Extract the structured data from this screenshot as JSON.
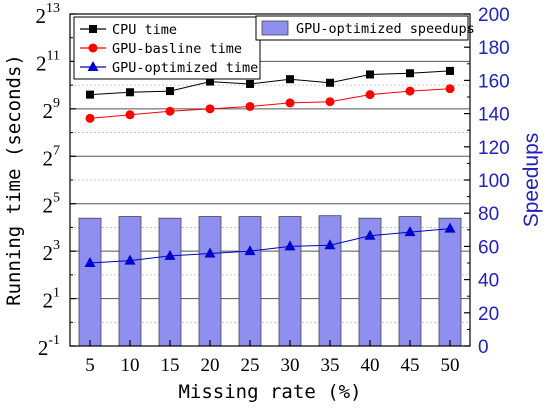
{
  "chart_data": {
    "type": "bar+line",
    "x": {
      "label": "Missing rate (%)",
      "categories": [
        "5",
        "10",
        "15",
        "20",
        "25",
        "30",
        "35",
        "40",
        "45",
        "50"
      ]
    },
    "y_left": {
      "label": "Running time (seconds)",
      "scale": "log2",
      "ticks": [
        {
          "base": "2",
          "exp": "-1",
          "value": -1
        },
        {
          "base": "2",
          "exp": "1",
          "value": 1
        },
        {
          "base": "2",
          "exp": "3",
          "value": 3
        },
        {
          "base": "2",
          "exp": "5",
          "value": 5
        },
        {
          "base": "2",
          "exp": "7",
          "value": 7
        },
        {
          "base": "2",
          "exp": "9",
          "value": 9
        },
        {
          "base": "2",
          "exp": "11",
          "value": 11
        },
        {
          "base": "2",
          "exp": "13",
          "value": 13
        }
      ],
      "ylim_log2": [
        -1,
        13
      ]
    },
    "y_right": {
      "label": "Speedups",
      "ticks": [
        "0",
        "20",
        "40",
        "60",
        "80",
        "100",
        "120",
        "140",
        "160",
        "180",
        "200"
      ],
      "ylim": [
        0,
        200
      ]
    },
    "bar_series": {
      "name": "GPU-optimized speedups",
      "color": "#8f8ff0",
      "values": [
        77,
        78,
        77,
        78,
        78,
        78,
        78.5,
        77,
        78,
        77
      ]
    },
    "line_series": [
      {
        "name": "CPU time",
        "color": "#000000",
        "marker": "square",
        "log2_values": [
          9.6,
          9.7,
          9.75,
          10.15,
          10.05,
          10.25,
          10.1,
          10.45,
          10.5,
          10.6
        ]
      },
      {
        "name": "GPU-basline time",
        "color": "#ff0000",
        "marker": "circle",
        "log2_values": [
          8.6,
          8.75,
          8.9,
          9.0,
          9.1,
          9.25,
          9.3,
          9.6,
          9.75,
          9.85
        ]
      },
      {
        "name": "GPU-optimized time",
        "color": "#0000cc",
        "marker": "triangle",
        "log2_values": [
          2.5,
          2.6,
          2.8,
          2.9,
          3.0,
          3.2,
          3.25,
          3.65,
          3.8,
          3.95
        ]
      }
    ],
    "legend_left": "top-left",
    "legend_right": "top-right",
    "grid": "horizontal"
  }
}
